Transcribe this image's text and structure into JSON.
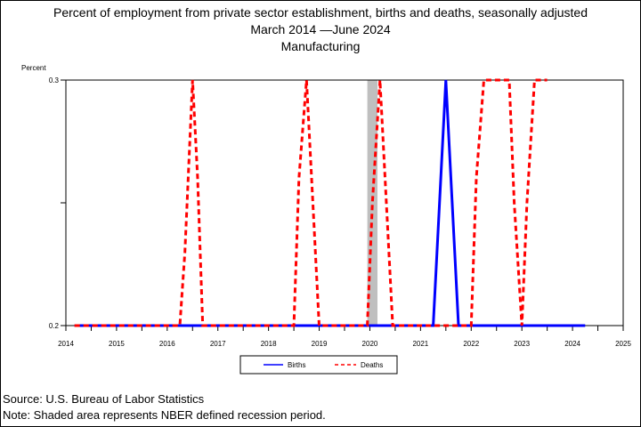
{
  "chart_data": {
    "type": "line",
    "title": "Percent of employment from private sector establishment, births and deaths, seasonally adjusted",
    "subtitle": "March 2014 —June 2024",
    "subtitle2": "Manufacturing",
    "ylabel": "Percent",
    "xlabel": "",
    "ylim": [
      0.2,
      0.3
    ],
    "y_ticks": [
      "0.2",
      "0.3"
    ],
    "xlim": [
      2014,
      2025
    ],
    "x_ticks": [
      "2014",
      "2015",
      "2016",
      "2017",
      "2018",
      "2019",
      "2020",
      "2021",
      "2022",
      "2023",
      "2024",
      "2025"
    ],
    "grid": false,
    "legend_placement": "bottom-center",
    "recession_shading": [
      {
        "start": 2019.95,
        "end": 2020.15
      }
    ],
    "series": [
      {
        "name": "Births",
        "color": "#0000ff",
        "style": "solid",
        "x": [
          2014.17,
          2021.25,
          2021.5,
          2021.75,
          2024.25
        ],
        "y": [
          0.2,
          0.2,
          0.3,
          0.2,
          0.2
        ]
      },
      {
        "name": "Deaths",
        "color": "#ff0000",
        "style": "dashed",
        "x": [
          2014.17,
          2016.25,
          2016.35,
          2016.5,
          2016.6,
          2016.7,
          2016.8,
          2018.5,
          2018.6,
          2018.75,
          2018.85,
          2019.0,
          2019.95,
          2020.05,
          2020.2,
          2020.35,
          2020.45,
          2022.0,
          2022.1,
          2022.25,
          2022.6,
          2022.75,
          2022.85,
          2023.0,
          2023.1,
          2023.25,
          2023.5
        ],
        "y": [
          0.2,
          0.2,
          0.23,
          0.3,
          0.26,
          0.2,
          0.2,
          0.2,
          0.26,
          0.3,
          0.26,
          0.2,
          0.2,
          0.25,
          0.3,
          0.24,
          0.2,
          0.2,
          0.26,
          0.3,
          0.3,
          0.3,
          0.25,
          0.2,
          0.25,
          0.3,
          0.3
        ]
      }
    ]
  },
  "legend": {
    "births": "Births",
    "deaths": "Deaths"
  },
  "footer": {
    "source": "Source: U.S. Bureau of Labor Statistics",
    "note": "Note: Shaded area represents NBER defined recession period."
  }
}
